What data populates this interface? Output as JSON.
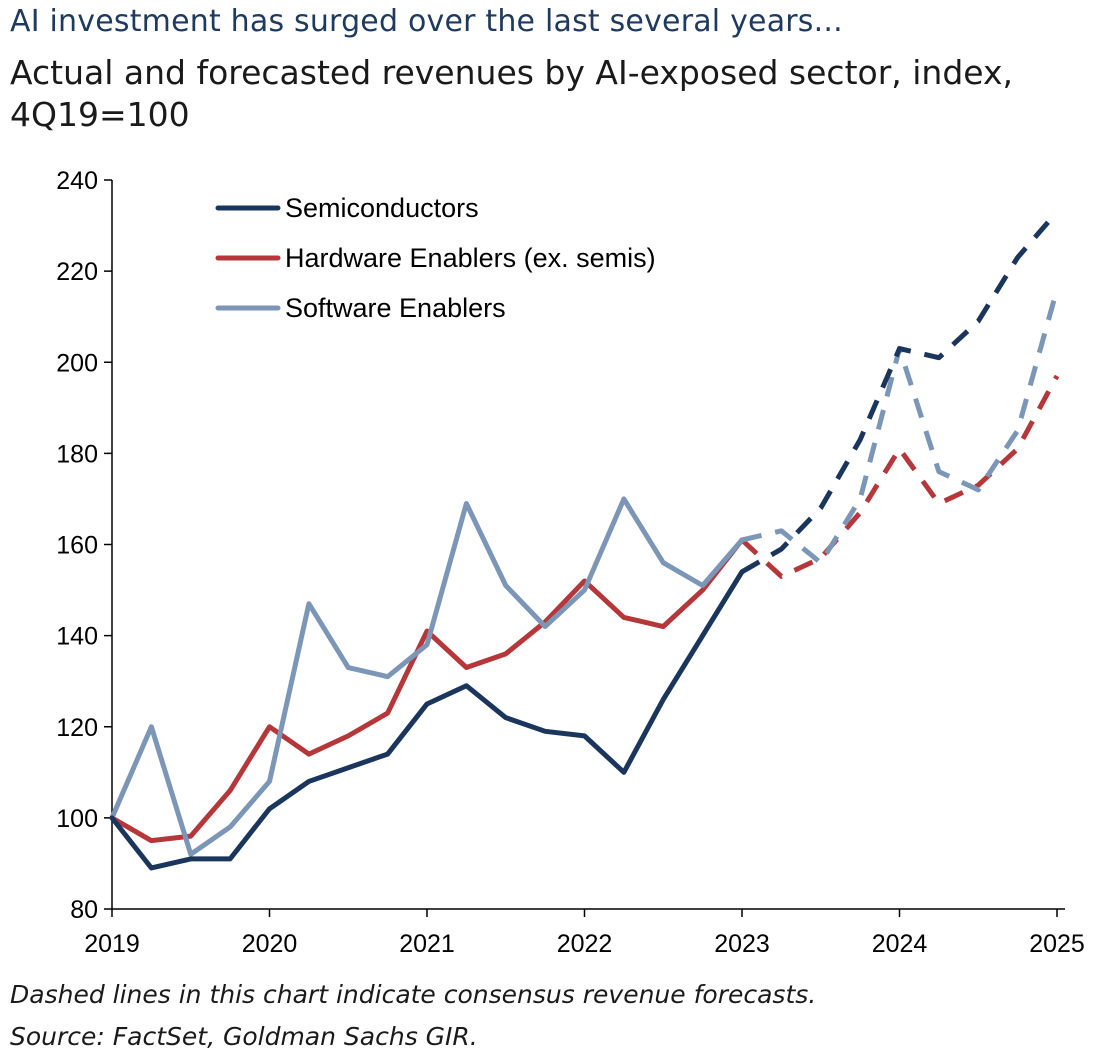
{
  "title": "AI investment has surged over the last several years...",
  "subtitle": "Actual and forecasted revenues by AI-exposed sector, index, 4Q19=100",
  "note": "Dashed lines in this chart indicate consensus revenue forecasts.",
  "source": "Source: FactSet, Goldman Sachs GIR.",
  "chart_data": {
    "type": "line",
    "x_ticks": [
      "2019",
      "2020",
      "2021",
      "2022",
      "2023",
      "2024",
      "2025"
    ],
    "xlim": [
      2019,
      2025
    ],
    "ylim": [
      80,
      240
    ],
    "y_ticks": [
      80,
      100,
      120,
      140,
      160,
      180,
      200,
      220,
      240
    ],
    "grid": false,
    "legend_position": "top-left",
    "actual_end_index": 12,
    "x": [
      2019.0,
      2019.25,
      2019.5,
      2019.75,
      2020.0,
      2020.25,
      2020.5,
      2020.75,
      2021.0,
      2021.25,
      2021.5,
      2021.75,
      2022.0,
      2022.25,
      2022.5,
      2022.75,
      2023.0,
      2023.25,
      2023.5,
      2023.75,
      2024.0,
      2024.25,
      2024.5,
      2024.75,
      2025.0
    ],
    "series": [
      {
        "name": "Semiconductors",
        "color": "#1b365d",
        "values": [
          100,
          89,
          91,
          91,
          102,
          108,
          111,
          114,
          125,
          129,
          122,
          119,
          118,
          110,
          126,
          140,
          154,
          159,
          168,
          183,
          203,
          201,
          209,
          223,
          233
        ]
      },
      {
        "name": "Hardware Enablers (ex. semis)",
        "color": "#b5373a",
        "values": [
          100,
          95,
          96,
          106,
          120,
          114,
          118,
          123,
          141,
          133,
          136,
          143,
          152,
          144,
          142,
          150,
          161,
          153,
          157,
          167,
          181,
          169,
          173,
          181,
          197
        ]
      },
      {
        "name": "Software Enablers",
        "color": "#7c96b8",
        "values": [
          100,
          120,
          92,
          98,
          108,
          147,
          133,
          131,
          138,
          169,
          151,
          142,
          150,
          170,
          156,
          151,
          161,
          163,
          156,
          170,
          203,
          176,
          172,
          185,
          216
        ]
      }
    ]
  }
}
